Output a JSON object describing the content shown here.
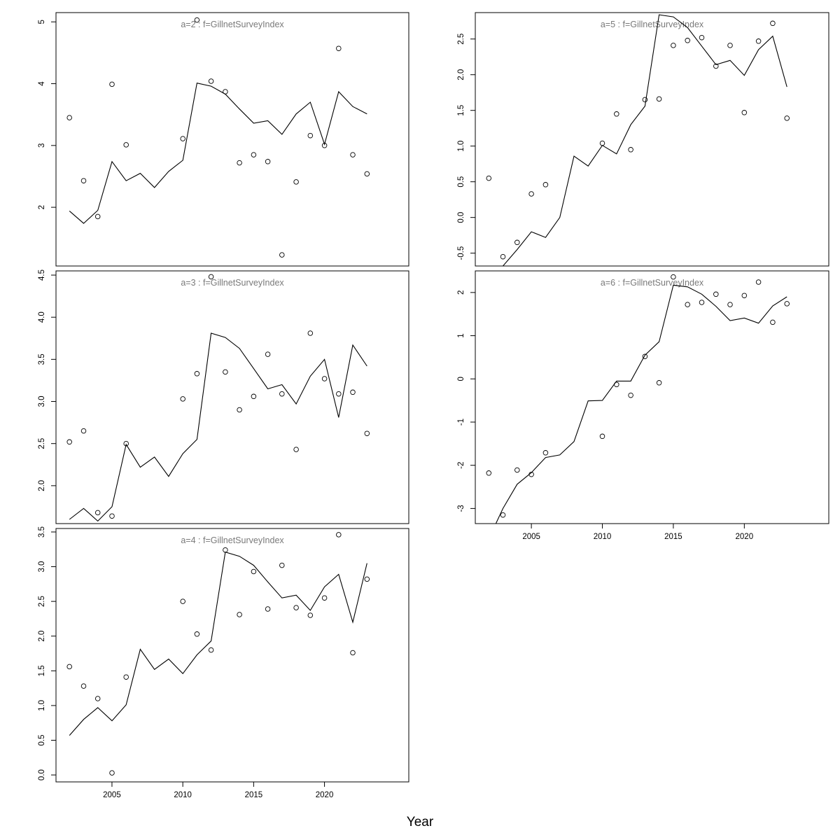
{
  "figure": {
    "xlabel": "Year"
  },
  "chart_data": [
    {
      "type": "line",
      "title": "a=2  :  f=GillnetSurveyIndex",
      "x": [
        2002,
        2003,
        2004,
        2005,
        2006,
        2007,
        2008,
        2009,
        2010,
        2011,
        2012,
        2013,
        2014,
        2015,
        2016,
        2017,
        2018,
        2019,
        2020,
        2021,
        2022,
        2023
      ],
      "series": [
        {
          "kind": "observed",
          "style": "points",
          "x": [
            2002,
            2003,
            2004,
            2005,
            2006,
            2010,
            2011,
            2012,
            2013,
            2014,
            2015,
            2016,
            2017,
            2018,
            2019,
            2020,
            2021,
            2022,
            2023
          ],
          "values": [
            3.45,
            2.43,
            1.85,
            3.99,
            3.01,
            3.11,
            5.03,
            4.04,
            3.87,
            2.72,
            2.85,
            2.74,
            1.23,
            2.41,
            3.16,
            3.0,
            4.57,
            2.85,
            2.54
          ]
        },
        {
          "kind": "fitted",
          "style": "line",
          "values": [
            1.94,
            1.74,
            1.95,
            2.74,
            2.43,
            2.55,
            2.32,
            2.58,
            2.76,
            4.01,
            3.96,
            3.83,
            3.59,
            3.36,
            3.4,
            3.18,
            3.51,
            3.7,
            3.02,
            3.87,
            3.63,
            3.51
          ]
        }
      ],
      "xlim": [
        2001.05,
        2025.95
      ],
      "ylim": [
        1.05,
        5.15
      ],
      "yticks": [
        2,
        3,
        4,
        5
      ],
      "xticks": [],
      "xlabel": "",
      "ylabel": ""
    },
    {
      "type": "line",
      "title": "a=3  :  f=GillnetSurveyIndex",
      "x": [
        2002,
        2003,
        2004,
        2005,
        2006,
        2007,
        2008,
        2009,
        2010,
        2011,
        2012,
        2013,
        2014,
        2015,
        2016,
        2017,
        2018,
        2019,
        2020,
        2021,
        2022,
        2023
      ],
      "series": [
        {
          "kind": "observed",
          "style": "points",
          "x": [
            2002,
            2003,
            2004,
            2005,
            2006,
            2010,
            2011,
            2012,
            2013,
            2014,
            2015,
            2016,
            2017,
            2018,
            2019,
            2020,
            2021,
            2022,
            2023
          ],
          "values": [
            2.52,
            2.65,
            1.68,
            1.64,
            2.5,
            3.03,
            3.33,
            4.48,
            3.35,
            2.9,
            3.06,
            3.56,
            3.09,
            2.43,
            3.81,
            3.27,
            3.09,
            3.11,
            2.62
          ]
        },
        {
          "kind": "fitted",
          "style": "line",
          "values": [
            1.6,
            1.73,
            1.58,
            1.75,
            2.49,
            2.22,
            2.34,
            2.11,
            2.38,
            2.55,
            3.81,
            3.76,
            3.63,
            3.39,
            3.15,
            3.2,
            2.97,
            3.3,
            3.5,
            2.81,
            3.67,
            3.42
          ]
        }
      ],
      "xlim": [
        2001.05,
        2025.95
      ],
      "ylim": [
        1.55,
        4.55
      ],
      "yticks": [
        2.0,
        2.5,
        3.0,
        3.5,
        4.0,
        4.5
      ],
      "xticks": [],
      "xlabel": "",
      "ylabel": ""
    },
    {
      "type": "line",
      "title": "a=4  :  f=GillnetSurveyIndex",
      "x": [
        2002,
        2003,
        2004,
        2005,
        2006,
        2007,
        2008,
        2009,
        2010,
        2011,
        2012,
        2013,
        2014,
        2015,
        2016,
        2017,
        2018,
        2019,
        2020,
        2021,
        2022,
        2023
      ],
      "series": [
        {
          "kind": "observed",
          "style": "points",
          "x": [
            2002,
            2003,
            2004,
            2005,
            2006,
            2010,
            2011,
            2012,
            2013,
            2014,
            2015,
            2016,
            2017,
            2018,
            2019,
            2020,
            2021,
            2022,
            2023
          ],
          "values": [
            1.56,
            1.28,
            1.1,
            0.03,
            1.41,
            2.5,
            2.03,
            1.8,
            3.24,
            2.31,
            2.93,
            2.39,
            3.02,
            2.41,
            2.3,
            2.55,
            3.46,
            1.76,
            2.82
          ]
        },
        {
          "kind": "fitted",
          "style": "line",
          "values": [
            0.57,
            0.8,
            0.97,
            0.78,
            1.01,
            1.81,
            1.52,
            1.67,
            1.46,
            1.73,
            1.93,
            3.21,
            3.15,
            3.02,
            2.78,
            2.55,
            2.59,
            2.37,
            2.71,
            2.89,
            2.2,
            3.05
          ]
        }
      ],
      "xlim": [
        2001.05,
        2025.95
      ],
      "ylim": [
        -0.1,
        3.55
      ],
      "yticks": [
        0.0,
        0.5,
        1.0,
        1.5,
        2.0,
        2.5,
        3.0,
        3.5
      ],
      "xticks": [
        2005,
        2010,
        2015,
        2020
      ],
      "xlabel": "",
      "ylabel": ""
    },
    {
      "type": "line",
      "title": "a=5  :  f=GillnetSurveyIndex",
      "x": [
        2002,
        2003,
        2004,
        2005,
        2006,
        2007,
        2008,
        2009,
        2010,
        2011,
        2012,
        2013,
        2014,
        2015,
        2016,
        2017,
        2018,
        2019,
        2020,
        2021,
        2022,
        2023
      ],
      "series": [
        {
          "kind": "observed",
          "style": "points",
          "x": [
            2002,
            2003,
            2004,
            2005,
            2006,
            2010,
            2011,
            2012,
            2013,
            2014,
            2015,
            2016,
            2017,
            2018,
            2019,
            2020,
            2021,
            2022,
            2023
          ],
          "values": [
            0.55,
            -0.55,
            -0.35,
            0.33,
            0.46,
            1.04,
            1.45,
            0.95,
            1.65,
            1.66,
            2.41,
            2.48,
            2.52,
            2.12,
            2.41,
            1.47,
            2.47,
            2.72,
            1.39
          ]
        },
        {
          "kind": "fitted",
          "style": "line",
          "values": [
            -0.9,
            -0.68,
            -0.45,
            -0.2,
            -0.28,
            0.0,
            0.86,
            0.72,
            1.01,
            0.89,
            1.3,
            1.56,
            2.84,
            2.81,
            2.66,
            2.4,
            2.14,
            2.2,
            1.99,
            2.35,
            2.54,
            1.83
          ]
        }
      ],
      "xlim": [
        2001.05,
        2025.95
      ],
      "ylim": [
        -0.68,
        2.87
      ],
      "yticks": [
        -0.5,
        0.0,
        0.5,
        1.0,
        1.5,
        2.0,
        2.5
      ],
      "xticks": [],
      "xlabel": "",
      "ylabel": ""
    },
    {
      "type": "line",
      "title": "a=6  :  f=GillnetSurveyIndex",
      "x": [
        2002,
        2003,
        2004,
        2005,
        2006,
        2007,
        2008,
        2009,
        2010,
        2011,
        2012,
        2013,
        2014,
        2015,
        2016,
        2017,
        2018,
        2019,
        2020,
        2021,
        2022,
        2023
      ],
      "series": [
        {
          "kind": "observed",
          "style": "points",
          "x": [
            2002,
            2003,
            2004,
            2005,
            2006,
            2010,
            2011,
            2012,
            2013,
            2014,
            2015,
            2016,
            2017,
            2018,
            2019,
            2020,
            2021,
            2022,
            2023
          ],
          "values": [
            -2.18,
            -3.15,
            -2.11,
            -2.21,
            -1.71,
            -1.33,
            -0.13,
            -0.38,
            0.52,
            -0.09,
            2.36,
            1.72,
            1.77,
            1.96,
            1.72,
            1.93,
            2.24,
            1.31,
            1.74
          ]
        },
        {
          "kind": "fitted",
          "style": "line",
          "values": [
            -3.7,
            -3.0,
            -2.44,
            -2.17,
            -1.82,
            -1.76,
            -1.45,
            -0.51,
            -0.5,
            -0.05,
            -0.05,
            0.55,
            0.86,
            2.17,
            2.13,
            1.96,
            1.68,
            1.35,
            1.41,
            1.29,
            1.69,
            1.9
          ]
        }
      ],
      "xlim": [
        2001.05,
        2025.95
      ],
      "ylim": [
        -3.35,
        2.5
      ],
      "yticks": [
        -3,
        -2,
        -1,
        0,
        1,
        2
      ],
      "xticks": [
        2005,
        2010,
        2015,
        2020
      ],
      "xlabel": "",
      "ylabel": ""
    }
  ]
}
